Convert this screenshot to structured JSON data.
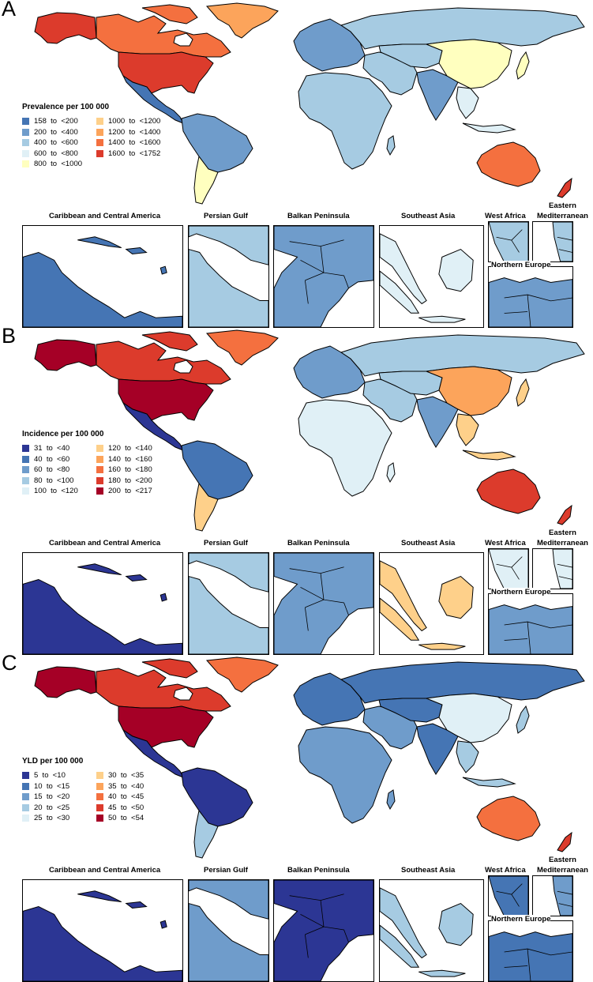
{
  "palette": {
    "blue_dark": "#2c3694",
    "blue1": "#4575b4",
    "blue2": "#6f9ccb",
    "blue3": "#a6cbe2",
    "blue4": "#e0f0f6",
    "yellow": "#ffffbf",
    "orange1": "#fed08a",
    "orange2": "#fca45b",
    "orange3": "#f4703f",
    "red1": "#dc3b2c",
    "red2": "#a50026"
  },
  "panels": [
    {
      "letter": "A",
      "legend_title": "Prevalence per 100 000",
      "legend": [
        {
          "label": "158  to  <200",
          "color": "#4575b4"
        },
        {
          "label": "200  to  <400",
          "color": "#6f9ccb"
        },
        {
          "label": "400  to  <600",
          "color": "#a6cbe2"
        },
        {
          "label": "600  to  <800",
          "color": "#e0f0f6"
        },
        {
          "label": "800  to  <1000",
          "color": "#ffffbf"
        },
        {
          "label": "1000  to  <1200",
          "color": "#fed08a"
        },
        {
          "label": "1200  to  <1400",
          "color": "#fca45b"
        },
        {
          "label": "1400  to  <1600",
          "color": "#f4703f"
        },
        {
          "label": "1600  to  <1752",
          "color": "#dc3b2c"
        }
      ],
      "regions": {
        "alaska": "#dc3b2c",
        "canada": "#f4703f",
        "usa": "#dc3b2c",
        "greenland": "#fca45b",
        "central_america": "#4575b4",
        "south_america": "#6f9ccb",
        "southern_cone": "#ffffbf",
        "europe": "#6f9ccb",
        "russia": "#a6cbe2",
        "africa": "#a6cbe2",
        "middle_east": "#a6cbe2",
        "central_asia": "#a6cbe2",
        "india": "#6f9ccb",
        "china": "#ffffbf",
        "se_asia": "#e0f0f6",
        "japan": "#ffffbf",
        "australia": "#f4703f",
        "new_zealand": "#dc3b2c"
      },
      "insets": [
        {
          "label": "Caribbean and Central America",
          "color": "#4575b4"
        },
        {
          "label": "Persian Gulf",
          "color": "#a6cbe2"
        },
        {
          "label": "Balkan Peninsula",
          "color": "#6f9ccb"
        },
        {
          "label": "Southeast Asia",
          "color": "#e0f0f6"
        },
        {
          "label": "West Africa",
          "color": "#a6cbe2"
        },
        {
          "label": "Eastern\nMediterranean",
          "color": "#a6cbe2"
        },
        {
          "label": "Northern Europe",
          "color": "#6f9ccb"
        }
      ]
    },
    {
      "letter": "B",
      "legend_title": "Incidence per 100 000",
      "legend": [
        {
          "label": "31  to  <40",
          "color": "#2c3694"
        },
        {
          "label": "40  to  <60",
          "color": "#4575b4"
        },
        {
          "label": "60  to  <80",
          "color": "#6f9ccb"
        },
        {
          "label": "80  to  <100",
          "color": "#a6cbe2"
        },
        {
          "label": "100  to  <120",
          "color": "#e0f0f6"
        },
        {
          "label": "120  to  <140",
          "color": "#fed08a"
        },
        {
          "label": "140  to  <160",
          "color": "#fca45b"
        },
        {
          "label": "160  to  <180",
          "color": "#f4703f"
        },
        {
          "label": "180  to  <200",
          "color": "#dc3b2c"
        },
        {
          "label": "200  to  <217",
          "color": "#a50026"
        }
      ],
      "regions": {
        "alaska": "#a50026",
        "canada": "#dc3b2c",
        "usa": "#a50026",
        "greenland": "#f4703f",
        "central_america": "#2c3694",
        "south_america": "#4575b4",
        "southern_cone": "#fed08a",
        "europe": "#6f9ccb",
        "russia": "#a6cbe2",
        "africa": "#e0f0f6",
        "middle_east": "#a6cbe2",
        "central_asia": "#a6cbe2",
        "india": "#6f9ccb",
        "china": "#fca45b",
        "se_asia": "#fed08a",
        "japan": "#fed08a",
        "australia": "#dc3b2c",
        "new_zealand": "#dc3b2c"
      },
      "insets": [
        {
          "label": "Caribbean and Central America",
          "color": "#2c3694"
        },
        {
          "label": "Persian Gulf",
          "color": "#a6cbe2"
        },
        {
          "label": "Balkan Peninsula",
          "color": "#6f9ccb"
        },
        {
          "label": "Southeast Asia",
          "color": "#fed08a"
        },
        {
          "label": "West Africa",
          "color": "#e0f0f6"
        },
        {
          "label": "Eastern\nMediterranean",
          "color": "#e0f0f6"
        },
        {
          "label": "Northern Europe",
          "color": "#6f9ccb"
        }
      ]
    },
    {
      "letter": "C",
      "legend_title": "YLD per 100 000",
      "legend": [
        {
          "label": "5  to  <10",
          "color": "#2c3694"
        },
        {
          "label": "10  to  <15",
          "color": "#4575b4"
        },
        {
          "label": "15  to  <20",
          "color": "#6f9ccb"
        },
        {
          "label": "20  to  <25",
          "color": "#a6cbe2"
        },
        {
          "label": "25  to  <30",
          "color": "#e0f0f6"
        },
        {
          "label": "30  to  <35",
          "color": "#fed08a"
        },
        {
          "label": "35  to  <40",
          "color": "#fca45b"
        },
        {
          "label": "40  to  <45",
          "color": "#f4703f"
        },
        {
          "label": "45  to  <50",
          "color": "#dc3b2c"
        },
        {
          "label": "50  to  <54",
          "color": "#a50026"
        }
      ],
      "regions": {
        "alaska": "#a50026",
        "canada": "#dc3b2c",
        "usa": "#a50026",
        "greenland": "#f4703f",
        "central_america": "#2c3694",
        "south_america": "#2c3694",
        "southern_cone": "#a6cbe2",
        "europe": "#4575b4",
        "russia": "#4575b4",
        "africa": "#6f9ccb",
        "middle_east": "#6f9ccb",
        "central_asia": "#4575b4",
        "india": "#4575b4",
        "china": "#e0f0f6",
        "se_asia": "#a6cbe2",
        "japan": "#a6cbe2",
        "australia": "#f4703f",
        "new_zealand": "#dc3b2c"
      },
      "insets": [
        {
          "label": "Caribbean and Central America",
          "color": "#2c3694"
        },
        {
          "label": "Persian Gulf",
          "color": "#6f9ccb"
        },
        {
          "label": "Balkan Peninsula",
          "color": "#2c3694"
        },
        {
          "label": "Southeast Asia",
          "color": "#a6cbe2"
        },
        {
          "label": "West Africa",
          "color": "#4575b4"
        },
        {
          "label": "Eastern\nMediterranean",
          "color": "#6f9ccb"
        },
        {
          "label": "Northern Europe",
          "color": "#4575b4"
        }
      ]
    }
  ]
}
